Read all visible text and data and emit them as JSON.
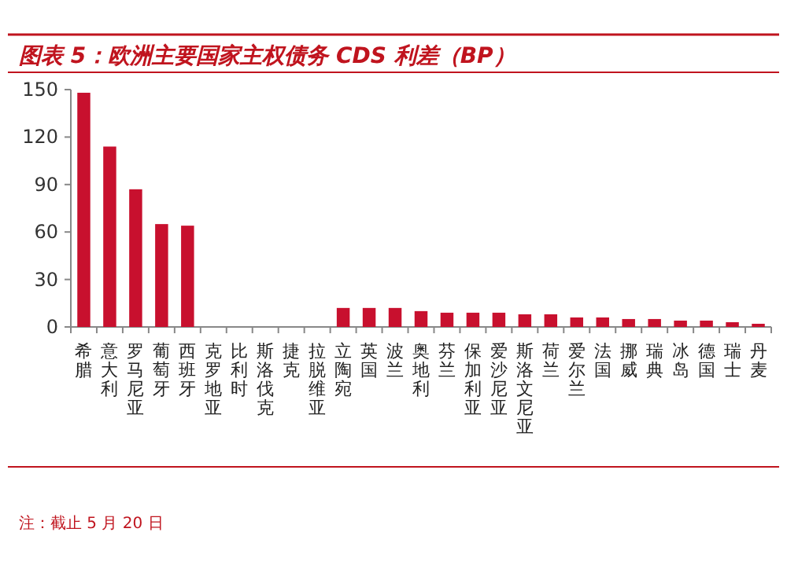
{
  "chart_data": {
    "type": "bar",
    "title": "图表 5：欧洲主要国家主权债务 CDS 利差（BP）",
    "categories": [
      "希腊",
      "意大利",
      "罗马尼亚",
      "葡萄牙",
      "西班牙",
      "克罗地亚",
      "比利时",
      "斯洛伐克",
      "捷克",
      "拉脱维亚",
      "立陶宛",
      "英国",
      "波兰",
      "奥地利",
      "芬兰",
      "保加利亚",
      "爱沙尼亚",
      "斯洛文尼亚",
      "荷兰",
      "爱尔兰",
      "法国",
      "挪威",
      "瑞典",
      "冰岛",
      "德国",
      "瑞士",
      "丹麦"
    ],
    "values": [
      148,
      114,
      87,
      65,
      64,
      null,
      null,
      null,
      null,
      null,
      12,
      12,
      12,
      10,
      9,
      9,
      9,
      8,
      8,
      6,
      6,
      5,
      5,
      4,
      4,
      3,
      2
    ],
    "color": "#c8102e",
    "ylim": [
      0,
      150
    ],
    "yticks": [
      0,
      30,
      60,
      90,
      120,
      150
    ],
    "grid": false,
    "annotations": [
      "注：截止 5 月 20 日"
    ]
  }
}
